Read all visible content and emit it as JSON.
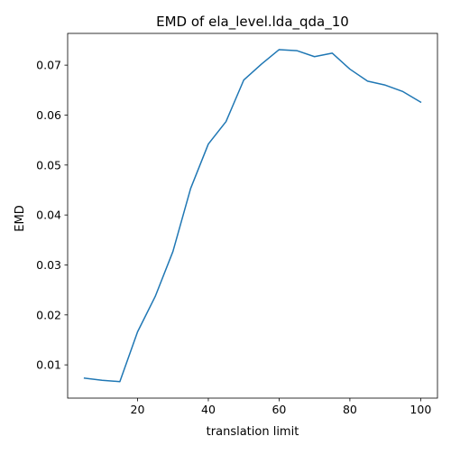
{
  "chart_data": {
    "type": "line",
    "title": "EMD of ela_level.lda_qda_10",
    "xlabel": "translation limit",
    "ylabel": "EMD",
    "xlim": [
      0.25,
      104.75
    ],
    "ylim": [
      0.00334,
      0.07635
    ],
    "x_ticks": [
      20,
      40,
      60,
      80,
      100
    ],
    "x_tick_labels": [
      "20",
      "40",
      "60",
      "80",
      "100"
    ],
    "y_ticks": [
      0.01,
      0.02,
      0.03,
      0.04,
      0.05,
      0.06,
      0.07
    ],
    "y_tick_labels": [
      "0.01",
      "0.02",
      "0.03",
      "0.04",
      "0.05",
      "0.06",
      "0.07"
    ],
    "grid": false,
    "series": [
      {
        "color": "#1f77b4",
        "x": [
          5,
          10,
          15,
          20,
          25,
          30,
          35,
          40,
          45,
          50,
          55,
          60,
          65,
          70,
          75,
          80,
          85,
          90,
          95,
          100
        ],
        "y": [
          0.00735,
          0.0069,
          0.00664,
          0.0166,
          0.0237,
          0.0327,
          0.0453,
          0.0542,
          0.0587,
          0.067,
          0.0702,
          0.0731,
          0.0729,
          0.0717,
          0.0724,
          0.0692,
          0.0668,
          0.066,
          0.0647,
          0.0626
        ]
      }
    ]
  }
}
